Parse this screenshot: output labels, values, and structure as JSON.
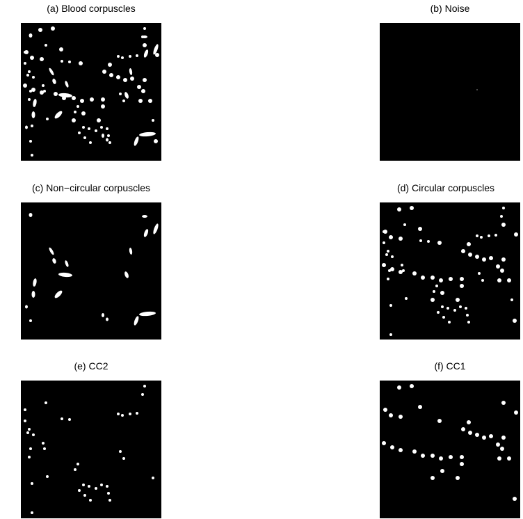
{
  "panels": [
    {
      "title": "(a) Blood corpuscles"
    },
    {
      "title": "(b) Noise"
    },
    {
      "title": "(c) Non−circular corpuscles"
    },
    {
      "title": "(d) Circular corpuscles"
    },
    {
      "title": "(e) CC2"
    },
    {
      "title": "(f) CC1"
    }
  ]
}
